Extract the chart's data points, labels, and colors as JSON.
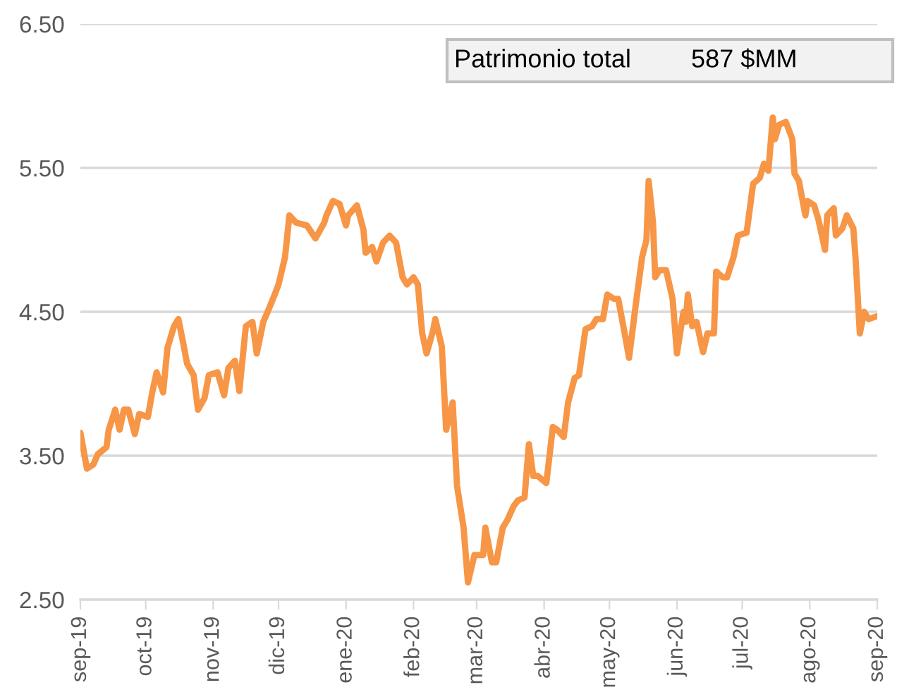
{
  "chart_data": {
    "type": "line",
    "x": [
      "2019-09-01",
      "2019-09-04",
      "2019-09-07",
      "2019-09-09",
      "2019-09-13",
      "2019-09-14",
      "2019-09-17",
      "2019-09-19",
      "2019-09-21",
      "2019-09-23",
      "2019-09-26",
      "2019-09-28",
      "2019-10-02",
      "2019-10-04",
      "2019-10-06",
      "2019-10-09",
      "2019-10-11",
      "2019-10-14",
      "2019-10-16",
      "2019-10-18",
      "2019-10-20",
      "2019-10-23",
      "2019-10-25",
      "2019-10-28",
      "2019-10-30",
      "2019-11-03",
      "2019-11-06",
      "2019-11-08",
      "2019-11-11",
      "2019-11-13",
      "2019-11-16",
      "2019-11-19",
      "2019-11-21",
      "2019-11-24",
      "2019-11-26",
      "2019-11-29",
      "2019-12-01",
      "2019-12-04",
      "2019-12-06",
      "2019-12-09",
      "2019-12-14",
      "2019-12-18",
      "2019-12-22",
      "2019-12-23",
      "2019-12-26",
      "2019-12-29",
      "2020-01-01",
      "2020-01-02",
      "2020-01-06",
      "2020-01-09",
      "2020-01-10",
      "2020-01-13",
      "2020-01-15",
      "2020-01-18",
      "2020-01-21",
      "2020-01-24",
      "2020-01-27",
      "2020-01-29",
      "2020-02-01",
      "2020-02-03",
      "2020-02-05",
      "2020-02-07",
      "2020-02-10",
      "2020-02-11",
      "2020-02-14",
      "2020-02-16",
      "2020-02-19",
      "2020-02-21",
      "2020-02-24",
      "2020-02-26",
      "2020-02-29",
      "2020-03-04",
      "2020-03-05",
      "2020-03-08",
      "2020-03-10",
      "2020-03-13",
      "2020-03-15",
      "2020-03-18",
      "2020-03-20",
      "2020-03-23",
      "2020-03-25",
      "2020-03-27",
      "2020-03-29",
      "2020-04-02",
      "2020-04-05",
      "2020-04-07",
      "2020-04-10",
      "2020-04-12",
      "2020-04-15",
      "2020-04-17",
      "2020-04-20",
      "2020-04-23",
      "2020-04-25",
      "2020-04-28",
      "2020-04-30",
      "2020-05-03",
      "2020-05-05",
      "2020-05-08",
      "2020-05-10",
      "2020-05-13",
      "2020-05-16",
      "2020-05-18",
      "2020-05-19",
      "2020-05-21",
      "2020-05-22",
      "2020-05-24",
      "2020-05-27",
      "2020-05-30",
      "2020-06-01",
      "2020-06-04",
      "2020-06-05",
      "2020-06-06",
      "2020-06-08",
      "2020-06-10",
      "2020-06-13",
      "2020-06-15",
      "2020-06-18",
      "2020-06-19",
      "2020-06-22",
      "2020-06-24",
      "2020-06-27",
      "2020-06-29",
      "2020-07-03",
      "2020-07-06",
      "2020-07-09",
      "2020-07-11",
      "2020-07-13",
      "2020-07-15",
      "2020-07-16",
      "2020-07-18",
      "2020-07-21",
      "2020-07-24",
      "2020-07-25",
      "2020-07-27",
      "2020-07-30",
      "2020-07-31",
      "2020-08-03",
      "2020-08-05",
      "2020-08-08",
      "2020-08-09",
      "2020-08-12",
      "2020-08-13",
      "2020-08-16",
      "2020-08-18",
      "2020-08-21",
      "2020-08-22",
      "2020-08-24",
      "2020-08-26",
      "2020-08-28",
      "2020-09-01"
    ],
    "series": [
      {
        "color": "#f79646",
        "values": [
          3.66,
          3.41,
          3.44,
          3.51,
          3.56,
          3.68,
          3.82,
          3.68,
          3.82,
          3.82,
          3.65,
          3.79,
          3.77,
          3.94,
          4.08,
          3.94,
          4.25,
          4.4,
          4.45,
          4.3,
          4.14,
          4.06,
          3.82,
          3.9,
          4.06,
          4.08,
          3.92,
          4.11,
          4.16,
          3.95,
          4.4,
          4.43,
          4.21,
          4.43,
          4.5,
          4.61,
          4.69,
          4.88,
          5.17,
          5.12,
          5.1,
          5.01,
          5.12,
          5.17,
          5.27,
          5.25,
          5.1,
          5.17,
          5.24,
          5.07,
          4.91,
          4.95,
          4.85,
          4.98,
          5.03,
          4.98,
          4.74,
          4.69,
          4.74,
          4.69,
          4.35,
          4.21,
          4.37,
          4.45,
          4.26,
          3.68,
          3.87,
          3.29,
          3.0,
          2.62,
          2.81,
          2.81,
          3.0,
          2.76,
          2.76,
          3.0,
          3.05,
          3.15,
          3.19,
          3.21,
          3.58,
          3.36,
          3.36,
          3.31,
          3.7,
          3.68,
          3.63,
          3.87,
          4.04,
          4.06,
          4.38,
          4.4,
          4.45,
          4.45,
          4.62,
          4.59,
          4.59,
          4.35,
          4.18,
          4.54,
          4.88,
          5.0,
          5.41,
          5.12,
          4.74,
          4.79,
          4.79,
          4.59,
          4.21,
          4.5,
          4.43,
          4.62,
          4.4,
          4.43,
          4.22,
          4.35,
          4.35,
          4.78,
          4.74,
          4.74,
          4.88,
          5.03,
          5.05,
          5.39,
          5.43,
          5.53,
          5.48,
          5.85,
          5.7,
          5.8,
          5.82,
          5.7,
          5.46,
          5.41,
          5.17,
          5.27,
          5.24,
          5.14,
          4.93,
          5.17,
          5.22,
          5.03,
          5.08,
          5.17,
          5.08,
          4.88,
          4.35,
          4.5,
          4.45,
          4.47
        ]
      }
    ],
    "xlim": [
      "2019-09-01",
      "2020-09-01"
    ],
    "xticks": [
      {
        "value": "2019-09-01",
        "label": "sep-19"
      },
      {
        "value": "2019-10-01",
        "label": "oct-19"
      },
      {
        "value": "2019-11-01",
        "label": "nov-19"
      },
      {
        "value": "2019-12-01",
        "label": "dic-19"
      },
      {
        "value": "2020-01-01",
        "label": "ene-20"
      },
      {
        "value": "2020-02-01",
        "label": "feb-20"
      },
      {
        "value": "2020-03-01",
        "label": "mar-20"
      },
      {
        "value": "2020-04-01",
        "label": "abr-20"
      },
      {
        "value": "2020-05-01",
        "label": "may-20"
      },
      {
        "value": "2020-06-01",
        "label": "jun-20"
      },
      {
        "value": "2020-07-01",
        "label": "jul-20"
      },
      {
        "value": "2020-08-01",
        "label": "ago-20"
      },
      {
        "value": "2020-09-01",
        "label": "sep-20"
      }
    ],
    "ylim": [
      2.5,
      6.5
    ],
    "yticks": [
      {
        "value": 2.5,
        "label": "2.50"
      },
      {
        "value": 3.5,
        "label": "3.50"
      },
      {
        "value": 4.5,
        "label": "4.50"
      },
      {
        "value": 5.5,
        "label": "5.50"
      },
      {
        "value": 6.5,
        "label": "6.50"
      }
    ],
    "grid": "y",
    "annotations": [
      "Patrimonio total",
      "587 $MM"
    ]
  }
}
